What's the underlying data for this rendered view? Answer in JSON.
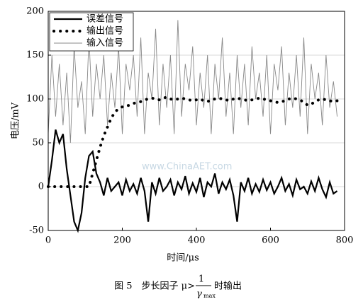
{
  "chart_data": {
    "type": "line",
    "xlabel": "时间/μs",
    "ylabel": "电压/mV",
    "watermark": "www.ChinaAET.com",
    "caption": {
      "prefix": "图 5　步长因子 μ>",
      "numerator": "1",
      "denominator": "γ",
      "denominator_sub": "max",
      "suffix": "时输出"
    },
    "xlim": [
      0,
      800
    ],
    "xticks": [
      0,
      200,
      400,
      600,
      800
    ],
    "ylim": [
      -50,
      200
    ],
    "yticks": [
      -50,
      0,
      50,
      100,
      150,
      200
    ],
    "grid": true,
    "legend": "upper left",
    "x": [
      0,
      10,
      20,
      30,
      40,
      50,
      60,
      70,
      80,
      90,
      100,
      110,
      120,
      130,
      140,
      150,
      160,
      170,
      180,
      190,
      200,
      210,
      220,
      230,
      240,
      250,
      260,
      270,
      280,
      290,
      300,
      310,
      320,
      330,
      340,
      350,
      360,
      370,
      380,
      390,
      400,
      410,
      420,
      430,
      440,
      450,
      460,
      470,
      480,
      490,
      500,
      510,
      520,
      530,
      540,
      550,
      560,
      570,
      580,
      590,
      600,
      610,
      620,
      630,
      640,
      650,
      660,
      670,
      680,
      690,
      700,
      710,
      720,
      730,
      740,
      750,
      760,
      770,
      780
    ],
    "series": [
      {
        "name": "输入信号",
        "color": "#888888",
        "style": "thin",
        "values": [
          60,
          150,
          80,
          140,
          70,
          130,
          50,
          160,
          90,
          120,
          60,
          170,
          80,
          140,
          100,
          150,
          70,
          130,
          90,
          160,
          60,
          140,
          110,
          150,
          80,
          170,
          60,
          130,
          100,
          180,
          70,
          140,
          90,
          150,
          60,
          190,
          80,
          140,
          110,
          160,
          70,
          130,
          90,
          150,
          60,
          140,
          100,
          170,
          80,
          130,
          60,
          150,
          90,
          140,
          70,
          160,
          100,
          130,
          80,
          150,
          60,
          140,
          110,
          160,
          70,
          130,
          90,
          150,
          80,
          170,
          60,
          140,
          100,
          130,
          70,
          150,
          90,
          120,
          80
        ]
      },
      {
        "name": "误差信号",
        "color": "#000000",
        "style": "solid",
        "values": [
          0,
          30,
          65,
          50,
          60,
          20,
          -10,
          -40,
          -50,
          -30,
          10,
          35,
          40,
          15,
          5,
          -10,
          10,
          -5,
          0,
          5,
          -10,
          8,
          -5,
          3,
          -8,
          10,
          -5,
          -40,
          5,
          -8,
          10,
          -5,
          0,
          8,
          -10,
          5,
          -3,
          12,
          -8,
          4,
          -6,
          10,
          -12,
          5,
          0,
          15,
          -8,
          5,
          -3,
          8,
          -10,
          -40,
          5,
          -5,
          10,
          -8,
          3,
          -6,
          8,
          -4,
          5,
          -8,
          0,
          10,
          -5,
          3,
          -10,
          8,
          -3,
          0,
          -8,
          6,
          -5,
          10,
          -3,
          -12,
          5,
          -8,
          -5
        ]
      },
      {
        "name": "输出信号",
        "color": "#000000",
        "style": "dotted",
        "values": [
          0,
          0,
          0,
          0,
          0,
          0,
          0,
          0,
          0,
          0,
          0,
          0,
          15,
          30,
          45,
          58,
          68,
          78,
          85,
          89,
          91,
          92,
          93,
          95,
          96,
          97,
          99,
          100,
          101,
          100,
          99,
          101,
          102,
          100,
          99,
          100,
          101,
          100,
          99,
          98,
          99,
          100,
          98,
          97,
          99,
          100,
          101,
          100,
          99,
          98,
          100,
          101,
          100,
          99,
          98,
          99,
          100,
          101,
          100,
          99,
          98,
          97,
          96,
          97,
          98,
          100,
          101,
          100,
          99,
          96,
          93,
          94,
          97,
          99,
          100,
          99,
          98,
          97,
          98
        ]
      }
    ]
  }
}
